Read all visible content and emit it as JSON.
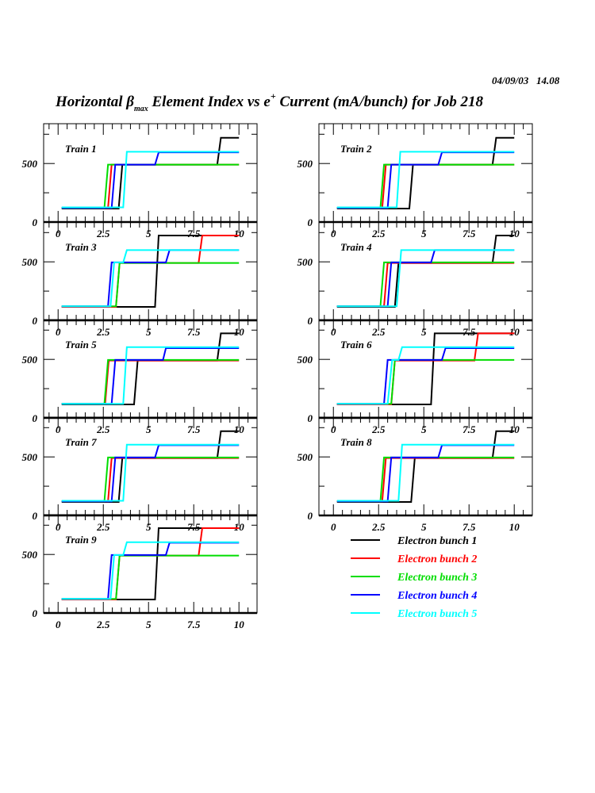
{
  "header": {
    "date": "04/09/03",
    "time": "14.08",
    "title_prefix": "Horizontal ",
    "title_beta": "β",
    "title_sub": "max",
    "title_mid": " Element Index vs e",
    "title_sup": "+",
    "title_suffix": " Current (mA/bunch) for Job 218"
  },
  "chart_data": {
    "type": "line",
    "title": "Horizontal βmax Element Index vs e+ Current (mA/bunch) for Job 218",
    "xlabel": "",
    "ylabel": "",
    "xlim": [
      -0.8,
      11
    ],
    "ylim": [
      0,
      840
    ],
    "x_ticks": [
      "0",
      "2.5",
      "5",
      "7.5",
      "10"
    ],
    "y_ticks": [
      "0",
      "500"
    ],
    "legend": {
      "placement": "bottom-right",
      "entries": [
        {
          "label": "Electron bunch 1",
          "color": "#000000"
        },
        {
          "label": "Electron bunch 2",
          "color": "#ff0000"
        },
        {
          "label": "Electron bunch 3",
          "color": "#00dd00"
        },
        {
          "label": "Electron bunch 4",
          "color": "#0000ff"
        },
        {
          "label": "Electron bunch 5",
          "color": "#00ffff"
        }
      ]
    },
    "panels": [
      {
        "label": "Train 1",
        "series": [
          [
            [
              0.2,
              115
            ],
            [
              3.35,
              115
            ],
            [
              3.55,
              490
            ],
            [
              8.8,
              490
            ],
            [
              9.0,
              720
            ],
            [
              10,
              720
            ]
          ],
          [
            [
              0.2,
              120
            ],
            [
              2.76,
              120
            ],
            [
              2.96,
              490
            ],
            [
              10,
              490
            ]
          ],
          [
            [
              0.2,
              120
            ],
            [
              2.56,
              120
            ],
            [
              2.76,
              490
            ],
            [
              10,
              490
            ]
          ],
          [
            [
              0.2,
              120
            ],
            [
              2.96,
              120
            ],
            [
              3.16,
              490
            ],
            [
              5.36,
              490
            ],
            [
              5.56,
              595
            ],
            [
              10,
              595
            ]
          ],
          [
            [
              0.2,
              125
            ],
            [
              3.6,
              125
            ],
            [
              3.8,
              600
            ],
            [
              10,
              600
            ]
          ]
        ]
      },
      {
        "label": "Train 2",
        "series": [
          [
            [
              0.2,
              115
            ],
            [
              4.2,
              115
            ],
            [
              4.4,
              490
            ],
            [
              8.8,
              490
            ],
            [
              9.0,
              720
            ],
            [
              10,
              720
            ]
          ],
          [
            [
              0.2,
              120
            ],
            [
              2.7,
              120
            ],
            [
              2.9,
              490
            ],
            [
              10,
              490
            ]
          ],
          [
            [
              0.2,
              120
            ],
            [
              2.6,
              120
            ],
            [
              2.8,
              490
            ],
            [
              10,
              490
            ]
          ],
          [
            [
              0.2,
              120
            ],
            [
              3.0,
              120
            ],
            [
              3.2,
              490
            ],
            [
              5.8,
              490
            ],
            [
              6.0,
              595
            ],
            [
              10,
              595
            ]
          ],
          [
            [
              0.2,
              125
            ],
            [
              3.5,
              125
            ],
            [
              3.7,
              600
            ],
            [
              10,
              600
            ]
          ]
        ]
      },
      {
        "label": "Train 3",
        "series": [
          [
            [
              0.2,
              115
            ],
            [
              5.36,
              115
            ],
            [
              5.56,
              725
            ],
            [
              10,
              725
            ]
          ],
          [
            [
              0.2,
              115
            ],
            [
              3.2,
              115
            ],
            [
              3.4,
              490
            ],
            [
              7.77,
              490
            ],
            [
              7.97,
              725
            ],
            [
              10,
              725
            ]
          ],
          [
            [
              0.2,
              120
            ],
            [
              3.2,
              120
            ],
            [
              3.4,
              490
            ],
            [
              10,
              490
            ]
          ],
          [
            [
              0.2,
              120
            ],
            [
              2.76,
              120
            ],
            [
              2.96,
              495
            ],
            [
              5.96,
              495
            ],
            [
              6.16,
              600
            ],
            [
              10,
              600
            ]
          ],
          [
            [
              0.2,
              120
            ],
            [
              2.9,
              120
            ],
            [
              3.1,
              495
            ],
            [
              3.6,
              495
            ],
            [
              3.8,
              600
            ],
            [
              10,
              600
            ]
          ]
        ]
      },
      {
        "label": "Train 4",
        "series": [
          [
            [
              0.2,
              115
            ],
            [
              3.4,
              115
            ],
            [
              3.6,
              490
            ],
            [
              8.8,
              490
            ],
            [
              9.0,
              725
            ],
            [
              10,
              725
            ]
          ],
          [
            [
              0.2,
              120
            ],
            [
              2.8,
              120
            ],
            [
              3.0,
              490
            ],
            [
              10,
              490
            ]
          ],
          [
            [
              0.2,
              120
            ],
            [
              2.6,
              120
            ],
            [
              2.8,
              495
            ],
            [
              10,
              495
            ]
          ],
          [
            [
              0.2,
              120
            ],
            [
              3.0,
              120
            ],
            [
              3.2,
              495
            ],
            [
              5.4,
              495
            ],
            [
              5.6,
              600
            ],
            [
              10,
              600
            ]
          ],
          [
            [
              0.2,
              120
            ],
            [
              3.5,
              120
            ],
            [
              3.75,
              600
            ],
            [
              10,
              600
            ]
          ]
        ]
      },
      {
        "label": "Train 5",
        "series": [
          [
            [
              0.2,
              115
            ],
            [
              4.2,
              115
            ],
            [
              4.4,
              490
            ],
            [
              8.8,
              490
            ],
            [
              9.0,
              722
            ],
            [
              10,
              722
            ]
          ],
          [
            [
              0.2,
              120
            ],
            [
              2.6,
              120
            ],
            [
              2.8,
              490
            ],
            [
              10,
              490
            ]
          ],
          [
            [
              0.2,
              120
            ],
            [
              2.56,
              120
            ],
            [
              2.76,
              495
            ],
            [
              10,
              495
            ]
          ],
          [
            [
              0.2,
              120
            ],
            [
              2.96,
              120
            ],
            [
              3.16,
              495
            ],
            [
              5.8,
              495
            ],
            [
              5.96,
              596
            ],
            [
              10,
              596
            ]
          ],
          [
            [
              0.2,
              120
            ],
            [
              3.6,
              120
            ],
            [
              3.8,
              605
            ],
            [
              10,
              605
            ]
          ]
        ]
      },
      {
        "label": "Train 6",
        "series": [
          [
            [
              0.2,
              115
            ],
            [
              5.4,
              115
            ],
            [
              5.6,
              722
            ],
            [
              10,
              722
            ]
          ],
          [
            [
              0.2,
              115
            ],
            [
              3.2,
              115
            ],
            [
              3.4,
              490
            ],
            [
              7.8,
              490
            ],
            [
              8.0,
              722
            ],
            [
              10,
              722
            ]
          ],
          [
            [
              0.2,
              120
            ],
            [
              3.2,
              120
            ],
            [
              3.4,
              495
            ],
            [
              10,
              495
            ]
          ],
          [
            [
              0.2,
              120
            ],
            [
              2.8,
              120
            ],
            [
              3.0,
              495
            ],
            [
              6.0,
              495
            ],
            [
              6.2,
              596
            ],
            [
              10,
              596
            ]
          ],
          [
            [
              0.2,
              120
            ],
            [
              3.0,
              120
            ],
            [
              3.25,
              495
            ],
            [
              3.6,
              495
            ],
            [
              3.8,
              605
            ],
            [
              10,
              605
            ]
          ]
        ]
      },
      {
        "label": "Train 7",
        "series": [
          [
            [
              0.2,
              115
            ],
            [
              3.35,
              115
            ],
            [
              3.55,
              490
            ],
            [
              8.8,
              490
            ],
            [
              9.0,
              720
            ],
            [
              10,
              720
            ]
          ],
          [
            [
              0.2,
              120
            ],
            [
              2.76,
              120
            ],
            [
              2.96,
              490
            ],
            [
              10,
              490
            ]
          ],
          [
            [
              0.2,
              120
            ],
            [
              2.56,
              120
            ],
            [
              2.76,
              495
            ],
            [
              10,
              495
            ]
          ],
          [
            [
              0.2,
              120
            ],
            [
              2.96,
              120
            ],
            [
              3.16,
              495
            ],
            [
              5.36,
              495
            ],
            [
              5.56,
              600
            ],
            [
              10,
              600
            ]
          ],
          [
            [
              0.2,
              125
            ],
            [
              3.6,
              125
            ],
            [
              3.8,
              605
            ],
            [
              10,
              605
            ]
          ]
        ]
      },
      {
        "label": "Train 8",
        "series": [
          [
            [
              0.2,
              115
            ],
            [
              4.3,
              115
            ],
            [
              4.5,
              490
            ],
            [
              8.8,
              490
            ],
            [
              9.0,
              720
            ],
            [
              10,
              720
            ]
          ],
          [
            [
              0.2,
              120
            ],
            [
              2.7,
              120
            ],
            [
              2.9,
              490
            ],
            [
              10,
              490
            ]
          ],
          [
            [
              0.2,
              120
            ],
            [
              2.6,
              120
            ],
            [
              2.8,
              495
            ],
            [
              10,
              495
            ]
          ],
          [
            [
              0.2,
              120
            ],
            [
              3.0,
              120
            ],
            [
              3.2,
              495
            ],
            [
              5.8,
              495
            ],
            [
              6.0,
              600
            ],
            [
              10,
              600
            ]
          ],
          [
            [
              0.2,
              125
            ],
            [
              3.6,
              125
            ],
            [
              3.8,
              605
            ],
            [
              10,
              605
            ]
          ]
        ]
      },
      {
        "label": "Train 9",
        "series": [
          [
            [
              0.2,
              115
            ],
            [
              5.36,
              115
            ],
            [
              5.56,
              725
            ],
            [
              10,
              725
            ]
          ],
          [
            [
              0.2,
              115
            ],
            [
              3.2,
              115
            ],
            [
              3.4,
              490
            ],
            [
              7.77,
              490
            ],
            [
              7.97,
              725
            ],
            [
              10,
              725
            ]
          ],
          [
            [
              0.2,
              120
            ],
            [
              3.2,
              120
            ],
            [
              3.4,
              490
            ],
            [
              10,
              490
            ]
          ],
          [
            [
              0.2,
              120
            ],
            [
              2.76,
              120
            ],
            [
              2.96,
              495
            ],
            [
              5.96,
              495
            ],
            [
              6.16,
              600
            ],
            [
              10,
              600
            ]
          ],
          [
            [
              0.2,
              120
            ],
            [
              2.9,
              120
            ],
            [
              3.1,
              495
            ],
            [
              3.6,
              495
            ],
            [
              3.8,
              605
            ],
            [
              10,
              605
            ]
          ]
        ]
      }
    ]
  }
}
